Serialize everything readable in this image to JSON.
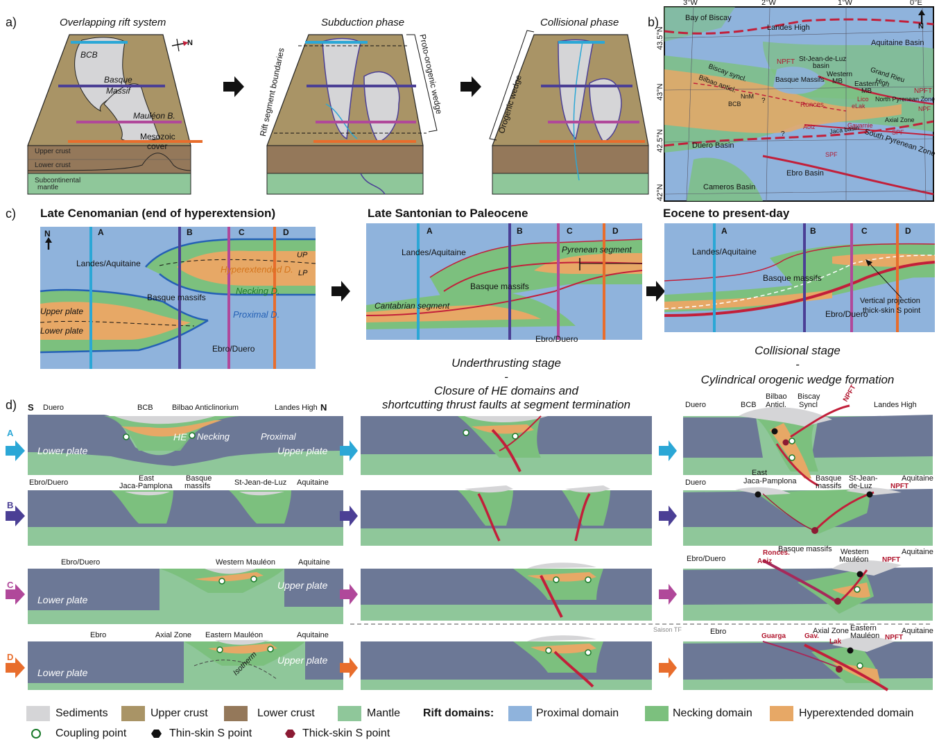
{
  "panel_labels": {
    "a": "a)",
    "b": "b)",
    "c": "c)",
    "d": "d)"
  },
  "a": {
    "titles": [
      "Overlapping rift system",
      "Subduction phase",
      "Collisional phase"
    ],
    "compass": "N",
    "block1": {
      "bcb": "BCB",
      "basque1": "Basque",
      "basque2": "Massif",
      "mauleon": "Mauléon B.",
      "mesozoic1": "Mesozoic",
      "mesozoic2": "cover",
      "upper_crust": "Upper crust",
      "lower_crust": "Lower crust",
      "subcont1": "Subcontinental",
      "subcont2": "mantle"
    },
    "block2": {
      "rift_boundaries": "Rift segment boundaries",
      "proto_wedge": "Proto-orogenic wedge"
    },
    "block3": {
      "orogenic_wedge": "Orogenic wedge"
    }
  },
  "b": {
    "lon_ticks": [
      "3°W",
      "2°W",
      "1°W",
      "0°E"
    ],
    "lat_ticks": [
      "43.5°N",
      "43°N",
      "42.5°N",
      "42°N"
    ],
    "north": "N",
    "labels": {
      "biscay": "Bay of Biscay",
      "landes": "Landes High",
      "aquitaine": "Aquitaine Basin",
      "npft1": "NPFT",
      "npft2": "NPFT",
      "sjl1": "St-Jean-de-Luz",
      "sjl2": "basin",
      "western1": "Western",
      "western2": "MB",
      "eastern1": "Eastern",
      "eastern2": "MB",
      "grandrieu1": "Grand Rieu",
      "grandrieu2": "High",
      "biscay_syncl": "Biscay syncl.",
      "bilbao_antic": "Bilbao anticl.",
      "basque_massifs": "Basque Massifs",
      "nnm": "NnM",
      "bcb": "BCB",
      "ronces": "Ronces.",
      "lico": "Lico",
      "elak": "eLak",
      "npz": "North Pyrenean Zone",
      "npf": "NPF",
      "axial": "Axial Zone",
      "aoiz": "Aoiz",
      "jaca": "Jaca basin",
      "gavarnie": "Gavarnie",
      "spf1": "SPF",
      "spf2": "SPF",
      "spz": "South Pyrenean Zone",
      "duero": "Duero Basin",
      "ebro": "Ebro Basin",
      "cameros": "Cameros Basin",
      "q1": "?",
      "q2": "?"
    }
  },
  "c": {
    "titles": [
      "Late Cenomanian (end of hyperextension)",
      "Late Santonian to Paleocene",
      "Eocene to present-day"
    ],
    "section_letters": [
      "A",
      "B",
      "C",
      "D"
    ],
    "map1": {
      "north": "N",
      "landes": "Landes/Aquitaine",
      "hyper": "Hyperextended D.",
      "up": "UP",
      "lp": "LP",
      "necking": "Necking D.",
      "proximal": "Proximal D.",
      "basque": "Basque massifs",
      "upper_plate": "Upper plate",
      "lower_plate": "Lower plate",
      "ebro": "Ebro/Duero"
    },
    "map2": {
      "landes": "Landes/Aquitaine",
      "pyrenean": "Pyrenean segment",
      "basque": "Basque massifs",
      "cantabrian": "Cantabrian segment",
      "ebro": "Ebro/Duero"
    },
    "map3": {
      "landes": "Landes/Aquitaine",
      "basque": "Basque massifs",
      "ebro": "Ebro/Duero",
      "vp1": "Vertical projection",
      "vp2": "thick-skin S point"
    },
    "stage_under": "Underthrusting stage",
    "dash": "-",
    "closure1": "Closure of HE domains and",
    "closure2": "shortcutting thrust faults at segment termination",
    "stage_coll": "Collisional stage",
    "dash2": "-",
    "cylindrical": "Cylindrical orogenic wedge formation"
  },
  "d": {
    "row_letters": [
      "A",
      "B",
      "C",
      "D"
    ],
    "rowA": {
      "s": "S",
      "n": "N",
      "duero": "Duero",
      "bcb": "BCB",
      "bilbao": "Bilbao Anticlinorium",
      "landes": "Landes High",
      "he": "HE",
      "necking": "Necking",
      "proximal": "Proximal",
      "lower": "Lower plate",
      "upper": "Upper plate"
    },
    "rowA3": {
      "duero": "Duero",
      "bcb": "BCB",
      "bilbao1": "Bilbao",
      "bilbao2": "Anticl.",
      "biscay1": "Biscay",
      "biscay2": "Syncl",
      "npft": "NPFT",
      "landes": "Landes High"
    },
    "rowB": {
      "ebro": "Ebro/Duero",
      "east1": "East",
      "east2": "Jaca-Pamplona",
      "basque1": "Basque",
      "basque2": "massifs",
      "sjl": "St-Jean-de-Luz",
      "aquitaine": "Aquitaine"
    },
    "rowB3": {
      "duero": "Duero",
      "east1": "East",
      "east2": "Jaca-Pamplona",
      "basque1": "Basque",
      "basque2": "massifs",
      "sjl1": "St-Jean-",
      "sjl2": "de-Luz",
      "aquitaine": "Aquitaine",
      "npft": "NPFT"
    },
    "rowC": {
      "ebro": "Ebro/Duero",
      "western": "Western Mauléon",
      "aquitaine": "Aquitaine",
      "upper": "Upper plate",
      "lower": "Lower plate"
    },
    "rowC3": {
      "ebro": "Ebro/Duero",
      "basque": "Basque massifs",
      "western1": "Western",
      "western2": "Mauléon",
      "aquitaine": "Aquitaine",
      "ronces": "Ronces.",
      "aoiz": "Aoiz",
      "npft": "NPFT"
    },
    "rowD": {
      "ebro": "Ebro",
      "axial": "Axial Zone",
      "eastern": "Eastern Mauléon",
      "aquitaine": "Aquitaine",
      "upper": "Upper plate",
      "lower": "Lower plate",
      "isotherm": "Isotherm"
    },
    "rowD3": {
      "ebro": "Ebro",
      "axial": "Axial Zone",
      "eastern1": "Eastern",
      "eastern2": "Mauléon",
      "aquitaine": "Aquitaine",
      "guarga": "Guarga",
      "gav": "Gav.",
      "lak": "Lak",
      "npft": "NPFT"
    },
    "saison": "Saison TF"
  },
  "legend": {
    "sediments": "Sediments",
    "upper_crust": "Upper crust",
    "lower_crust": "Lower crust",
    "mantle": "Mantle",
    "rift_domains": "Rift domains:",
    "proximal": "Proximal domain",
    "necking": "Necking domain",
    "hyper": "Hyperextended domain",
    "coupling": "Coupling point",
    "thin": "Thin-skin S point",
    "thick": "Thick-skin S point"
  },
  "colors": {
    "sediments": "#d5d5d7",
    "upper_crust": "#a99466",
    "lower_crust": "#94785a",
    "mantle": "#8fc79a",
    "proximal": "#8fb3dc",
    "necking": "#7cc07e",
    "hyper": "#e7a866",
    "plate": "#6c7896",
    "A": "#2ba7d6",
    "B": "#4b3f95",
    "C": "#b0489a",
    "D": "#e86d2c",
    "thrust": "#c21f3a"
  }
}
